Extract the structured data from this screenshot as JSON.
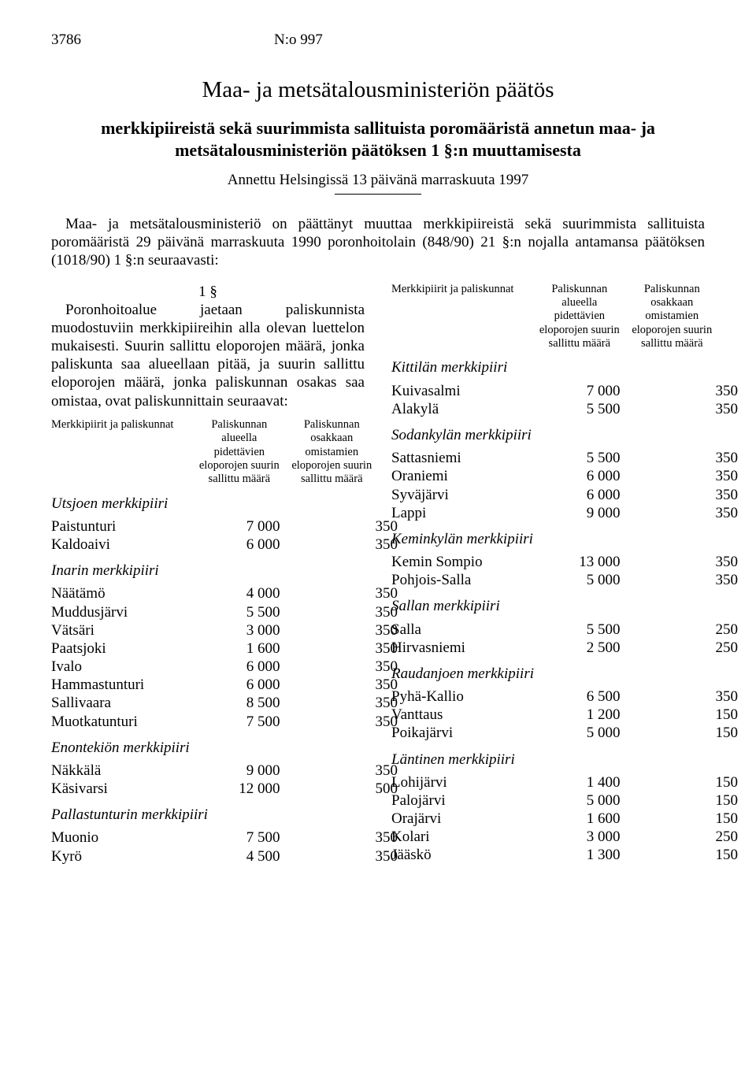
{
  "header": {
    "page_no": "3786",
    "doc_no": "N:o 997"
  },
  "titles": {
    "main": "Maa- ja metsätalousministeriön päätös",
    "sub": "merkkipiireistä sekä suurimmista sallituista poromääristä annetun maa- ja metsätalousministeriön päätöksen 1 §:n muuttamisesta",
    "given": "Annettu Helsingissä 13 päivänä marraskuuta 1997"
  },
  "intro": "Maa- ja metsätalousministeriö on päättänyt muuttaa merkkipiireistä sekä suurimmista sallituista poromääristä 29 päivänä marraskuuta 1990 poronhoitolain (848/90) 21 §:n nojalla antamansa päätöksen (1018/90) 1 §:n seuraavasti:",
  "section": {
    "num": "1 §",
    "text": "Poronhoitoalue jaetaan paliskunnista muodostuviin merkkipiireihin alla olevan luettelon mukaisesti. Suurin sallittu eloporojen määrä, jonka paliskunta saa alueellaan pitää, ja suurin sallittu eloporojen määrä, jonka paliskunnan osakas saa omistaa, ovat paliskunnittain seuraavat:"
  },
  "table_head": {
    "c1": "Merkkipiirit ja paliskunnat",
    "c2": "Paliskunnan alueella pidettävien eloporojen suurin sallittu määrä",
    "c3": "Paliskunnan osakkaan omistamien eloporojen suurin sallittu määrä"
  },
  "left": [
    {
      "district": "Utsjoen merkkipiiri",
      "rows": [
        {
          "n": "Paistunturi",
          "a": "7 000",
          "b": "350"
        },
        {
          "n": "Kaldoaivi",
          "a": "6 000",
          "b": "350"
        }
      ]
    },
    {
      "district": "Inarin merkkipiiri",
      "rows": [
        {
          "n": "Näätämö",
          "a": "4 000",
          "b": "350"
        },
        {
          "n": "Muddusjärvi",
          "a": "5 500",
          "b": "350"
        },
        {
          "n": "Vätsäri",
          "a": "3 000",
          "b": "350"
        },
        {
          "n": "Paatsjoki",
          "a": "1 600",
          "b": "350"
        },
        {
          "n": "Ivalo",
          "a": "6 000",
          "b": "350"
        },
        {
          "n": "Hammastunturi",
          "a": "6 000",
          "b": "350"
        },
        {
          "n": "Sallivaara",
          "a": "8 500",
          "b": "350"
        },
        {
          "n": "Muotkatunturi",
          "a": "7 500",
          "b": "350"
        }
      ]
    },
    {
      "district": "Enontekiön merkkipiiri",
      "rows": [
        {
          "n": "Näkkälä",
          "a": "9 000",
          "b": "350"
        },
        {
          "n": "Käsivarsi",
          "a": "12 000",
          "b": "500"
        }
      ]
    },
    {
      "district": "Pallastunturin merkkipiiri",
      "rows": [
        {
          "n": "Muonio",
          "a": "7 500",
          "b": "350"
        },
        {
          "n": "Kyrö",
          "a": "4 500",
          "b": "350"
        }
      ]
    }
  ],
  "right": [
    {
      "district": "Kittilän merkkipiiri",
      "rows": [
        {
          "n": "Kuivasalmi",
          "a": "7 000",
          "b": "350"
        },
        {
          "n": "Alakylä",
          "a": "5 500",
          "b": "350"
        }
      ]
    },
    {
      "district": "Sodankylän merkkipiiri",
      "rows": [
        {
          "n": "Sattasniemi",
          "a": "5 500",
          "b": "350"
        },
        {
          "n": "Oraniemi",
          "a": "6 000",
          "b": "350"
        },
        {
          "n": "Syväjärvi",
          "a": "6 000",
          "b": "350"
        },
        {
          "n": "Lappi",
          "a": "9 000",
          "b": "350"
        }
      ]
    },
    {
      "district": "Keminkylän merkkipiiri",
      "rows": [
        {
          "n": "Kemin Sompio",
          "a": "13 000",
          "b": "350"
        },
        {
          "n": "Pohjois-Salla",
          "a": "5 000",
          "b": "350"
        }
      ]
    },
    {
      "district": "Sallan merkkipiiri",
      "rows": [
        {
          "n": "Salla",
          "a": "5 500",
          "b": "250"
        },
        {
          "n": "Hirvasniemi",
          "a": "2 500",
          "b": "250"
        }
      ]
    },
    {
      "district": "Raudanjoen merkkipiiri",
      "rows": [
        {
          "n": "Pyhä-Kallio",
          "a": "6 500",
          "b": "350"
        },
        {
          "n": "Vanttaus",
          "a": "1 200",
          "b": "150"
        },
        {
          "n": "Poikajärvi",
          "a": "5 000",
          "b": "150"
        }
      ]
    },
    {
      "district": "Läntinen merkkipiiri",
      "rows": [
        {
          "n": "Lohijärvi",
          "a": "1 400",
          "b": "150"
        },
        {
          "n": "Palojärvi",
          "a": "5 000",
          "b": "150"
        },
        {
          "n": "Orajärvi",
          "a": "1 600",
          "b": "150"
        },
        {
          "n": "Kolari",
          "a": "3 000",
          "b": "250"
        },
        {
          "n": "Jääskö",
          "a": "1 300",
          "b": "150"
        }
      ]
    }
  ]
}
